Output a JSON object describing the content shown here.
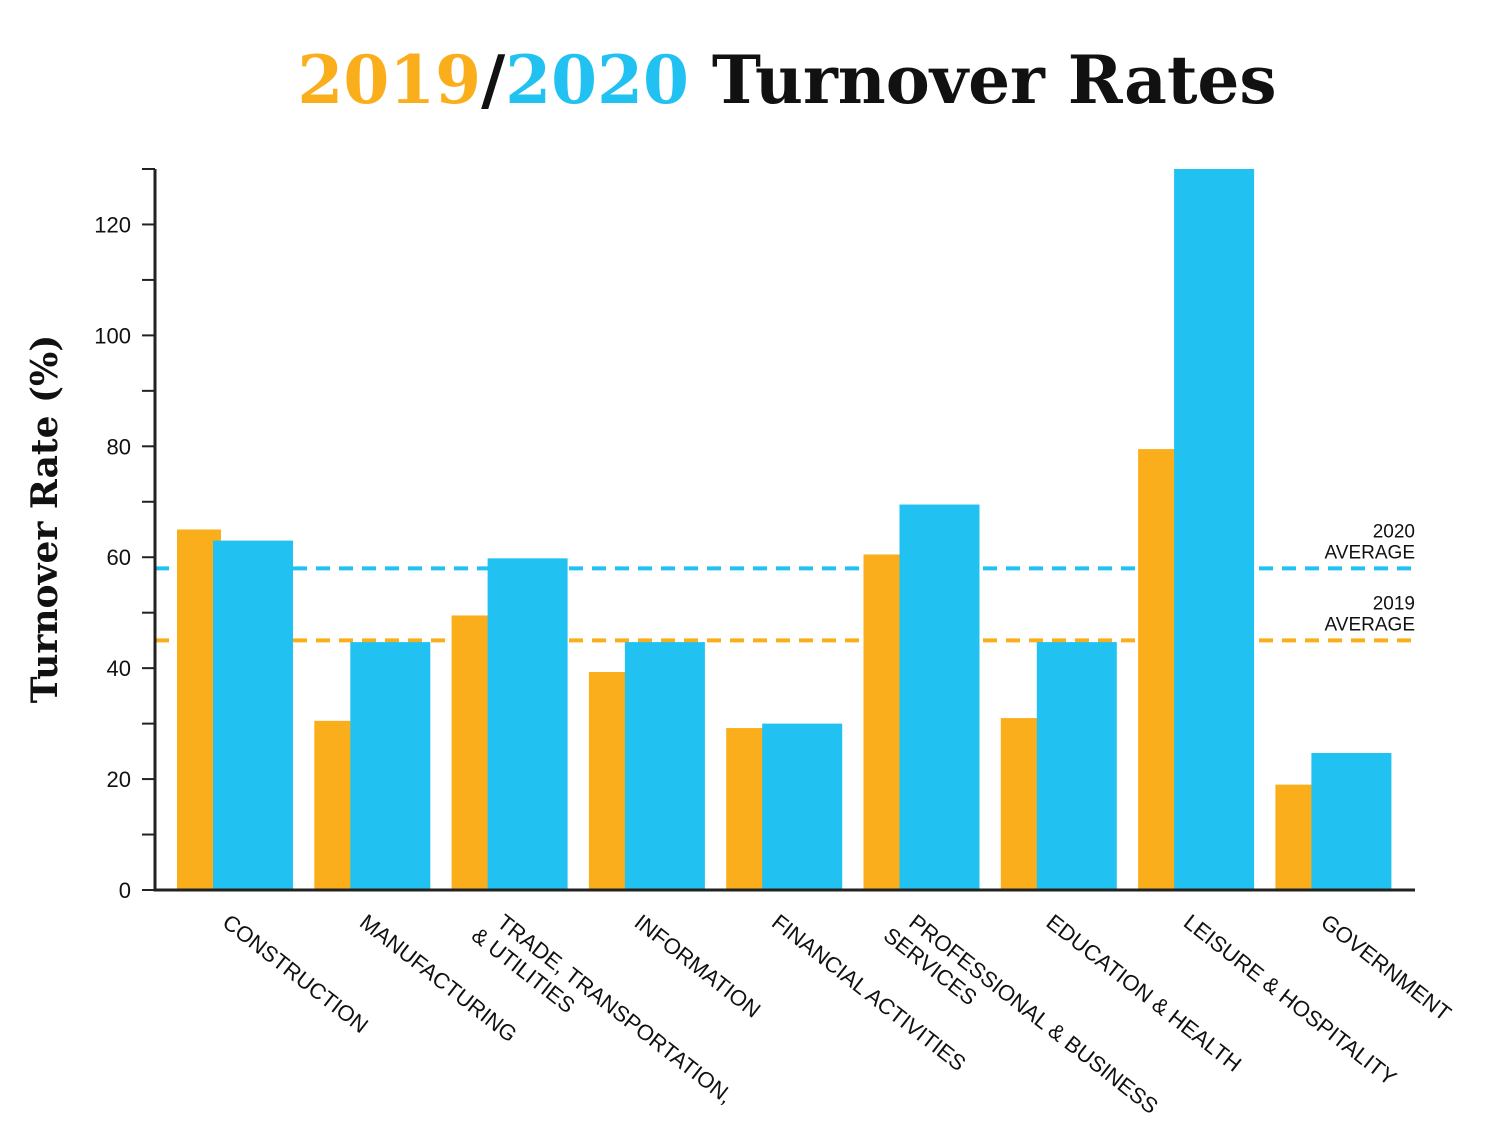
{
  "title": {
    "part_2019": "2019",
    "slash": "/",
    "part_2020": "2020",
    "rest": " Turnover Rates"
  },
  "colors": {
    "series_2019": "#FBAE1C",
    "series_2020": "#21C2F1",
    "title_text": "#111111",
    "axis": "#222222"
  },
  "chart_data": {
    "type": "bar",
    "title": "2019/2020 Turnover Rates",
    "ylabel": "Turnover Rate (%)",
    "xlabel": "",
    "ylim": [
      0,
      130
    ],
    "yticks": [
      0,
      20,
      40,
      60,
      80,
      100,
      120
    ],
    "grid": false,
    "categories": [
      "CONSTRUCTION",
      "MANUFACTURING",
      "TRADE, TRANSPORTATION, & UTILITIES",
      "INFORMATION",
      "FINANCIAL ACTIVITIES",
      "PROFESSIONAL & BUSINESS SERVICES",
      "EDUCATION & HEALTH",
      "LEISURE & HOSPITALITY",
      "GOVERNMENT"
    ],
    "category_label_lines": [
      [
        "CONSTRUCTION"
      ],
      [
        "MANUFACTURING"
      ],
      [
        "TRADE, TRANSPORTATION,",
        "& UTILITIES"
      ],
      [
        "INFORMATION"
      ],
      [
        "FINANCIAL ACTIVITIES"
      ],
      [
        "PROFESSIONAL & BUSINESS",
        "SERVICES"
      ],
      [
        "EDUCATION & HEALTH"
      ],
      [
        "LEISURE & HOSPITALITY"
      ],
      [
        "GOVERNMENT"
      ]
    ],
    "series": [
      {
        "name": "2019",
        "color": "#FBAE1C",
        "values": [
          65,
          30.5,
          49.5,
          39.3,
          29.2,
          60.5,
          31,
          79.5,
          19
        ]
      },
      {
        "name": "2020",
        "color": "#21C2F1",
        "values": [
          63,
          44.7,
          59.8,
          44.7,
          30,
          69.5,
          44.7,
          130,
          24.7
        ]
      }
    ],
    "reference_lines": [
      {
        "label_lines": [
          "2020",
          "AVERAGE"
        ],
        "value": 58,
        "color": "#21C2F1"
      },
      {
        "label_lines": [
          "2019",
          "AVERAGE"
        ],
        "value": 45,
        "color": "#FBAE1C"
      }
    ]
  }
}
